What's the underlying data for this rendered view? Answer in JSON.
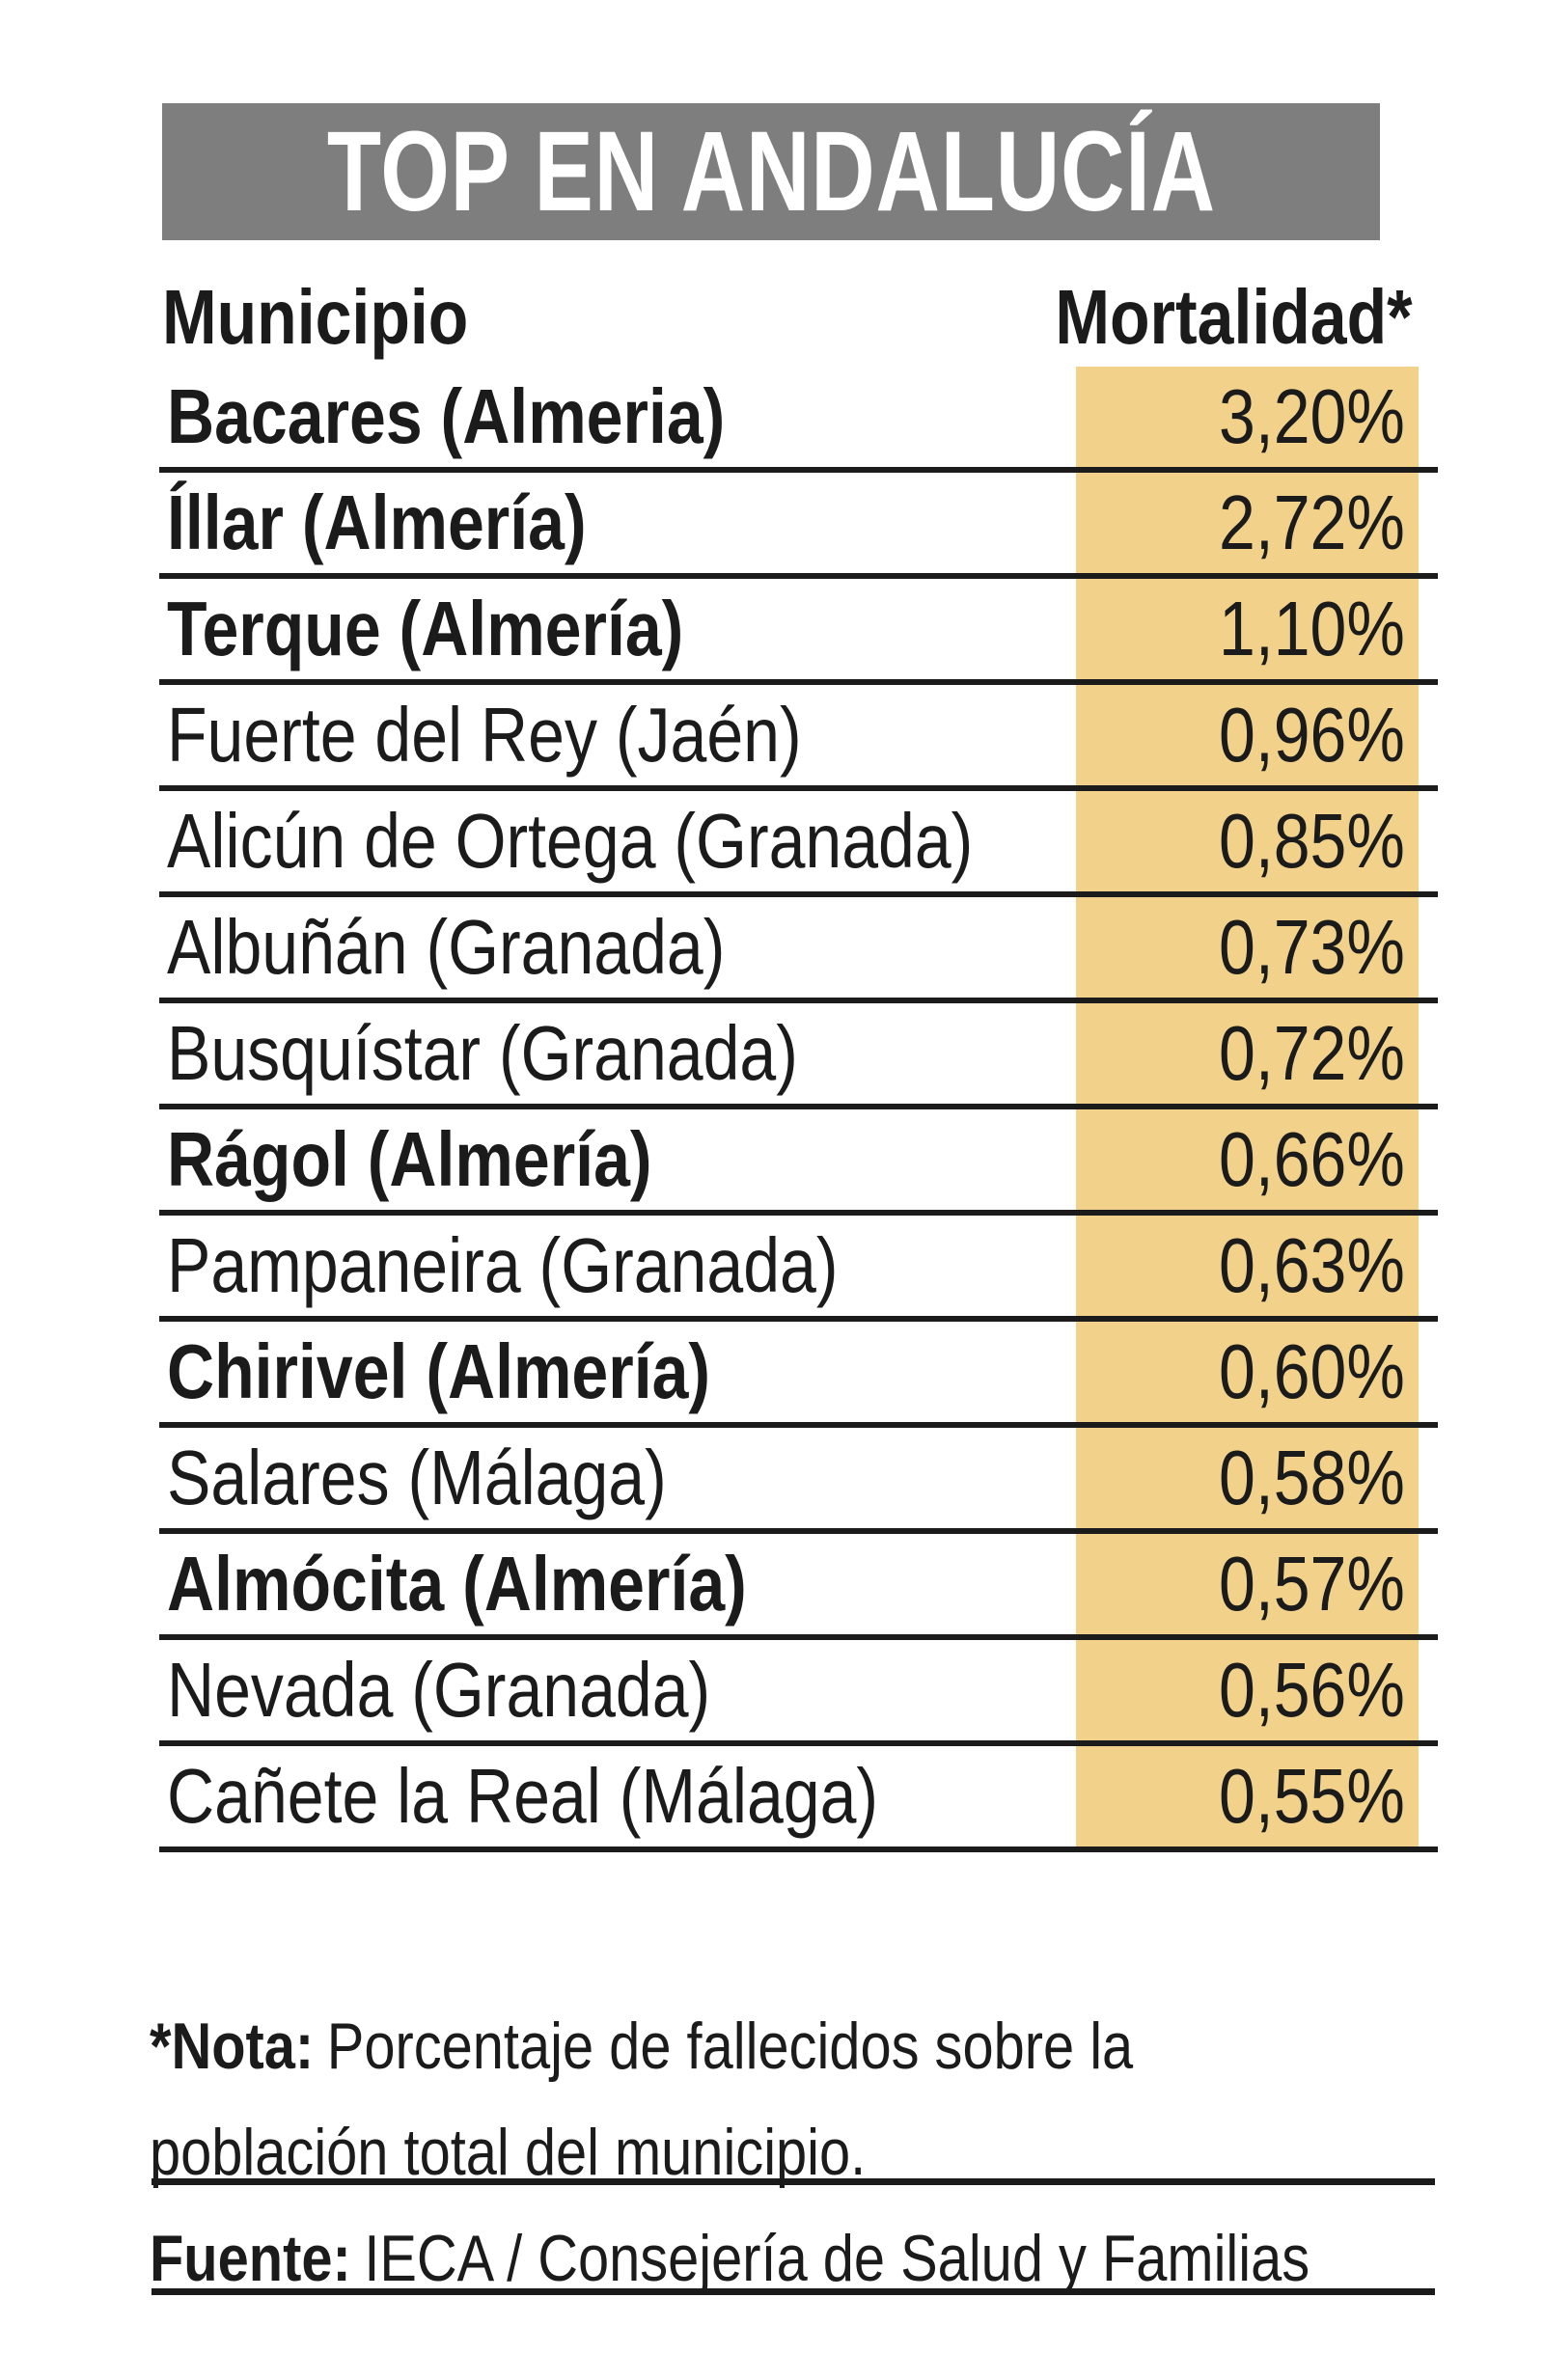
{
  "title": {
    "text": "TOP EN ANDALUCÍA",
    "bar_color": "#7e7e7e",
    "text_color": "#ffffff"
  },
  "table": {
    "columns": {
      "municipality": "Municipio",
      "mortality": "Mortalidad*"
    },
    "highlight_color": "#f2d28b",
    "rows": [
      {
        "municipality": "Bacares (Almeria)",
        "mortality": "3,20%",
        "bold": true
      },
      {
        "municipality": "Íllar (Almería)",
        "mortality": "2,72%",
        "bold": true
      },
      {
        "municipality": "Terque (Almería)",
        "mortality": "1,10%",
        "bold": true
      },
      {
        "municipality": "Fuerte del Rey (Jaén)",
        "mortality": "0,96%",
        "bold": false
      },
      {
        "municipality": "Alicún de Ortega (Granada)",
        "mortality": "0,85%",
        "bold": false
      },
      {
        "municipality": "Albuñán (Granada)",
        "mortality": "0,73%",
        "bold": false
      },
      {
        "municipality": "Busquístar (Granada)",
        "mortality": "0,72%",
        "bold": false
      },
      {
        "municipality": "Rágol (Almería)",
        "mortality": "0,66%",
        "bold": true
      },
      {
        "municipality": "Pampaneira (Granada)",
        "mortality": "0,63%",
        "bold": false
      },
      {
        "municipality": "Chirivel (Almería)",
        "mortality": "0,60%",
        "bold": true
      },
      {
        "municipality": "Salares (Málaga)",
        "mortality": "0,58%",
        "bold": false
      },
      {
        "municipality": "Almócita (Almería)",
        "mortality": "0,57%",
        "bold": true
      },
      {
        "municipality": "Nevada (Granada)",
        "mortality": "0,56%",
        "bold": false
      },
      {
        "municipality": "Cañete la Real (Málaga)",
        "mortality": "0,55%",
        "bold": false
      }
    ]
  },
  "footnote": {
    "label": "*Nota:",
    "text_line1": "Porcentaje de fallecidos sobre la",
    "text_line2": "población total del municipio."
  },
  "source": {
    "label": "Fuente:",
    "text": "IECA / Consejería de Salud y Familias"
  },
  "chart_data": {
    "type": "table",
    "title": "TOP EN ANDALUCÍA",
    "columns": [
      "Municipio",
      "Mortalidad*"
    ],
    "categories": [
      "Bacares (Almeria)",
      "Íllar (Almería)",
      "Terque (Almería)",
      "Fuerte del Rey (Jaén)",
      "Alicún de Ortega (Granada)",
      "Albuñán (Granada)",
      "Busquístar (Granada)",
      "Rágol (Almería)",
      "Pampaneira (Granada)",
      "Chirivel (Almería)",
      "Salares (Málaga)",
      "Almócita (Almería)",
      "Nevada (Granada)",
      "Cañete la Real (Málaga)"
    ],
    "values": [
      3.2,
      2.72,
      1.1,
      0.96,
      0.85,
      0.73,
      0.72,
      0.66,
      0.63,
      0.6,
      0.58,
      0.57,
      0.56,
      0.55
    ],
    "value_unit": "%",
    "note": "*Nota: Porcentaje de fallecidos sobre la población total del municipio.",
    "source": "Fuente: IECA / Consejería de Salud y Familias",
    "highlighted_rows_bold": "Municipios de Almería en negrita"
  }
}
